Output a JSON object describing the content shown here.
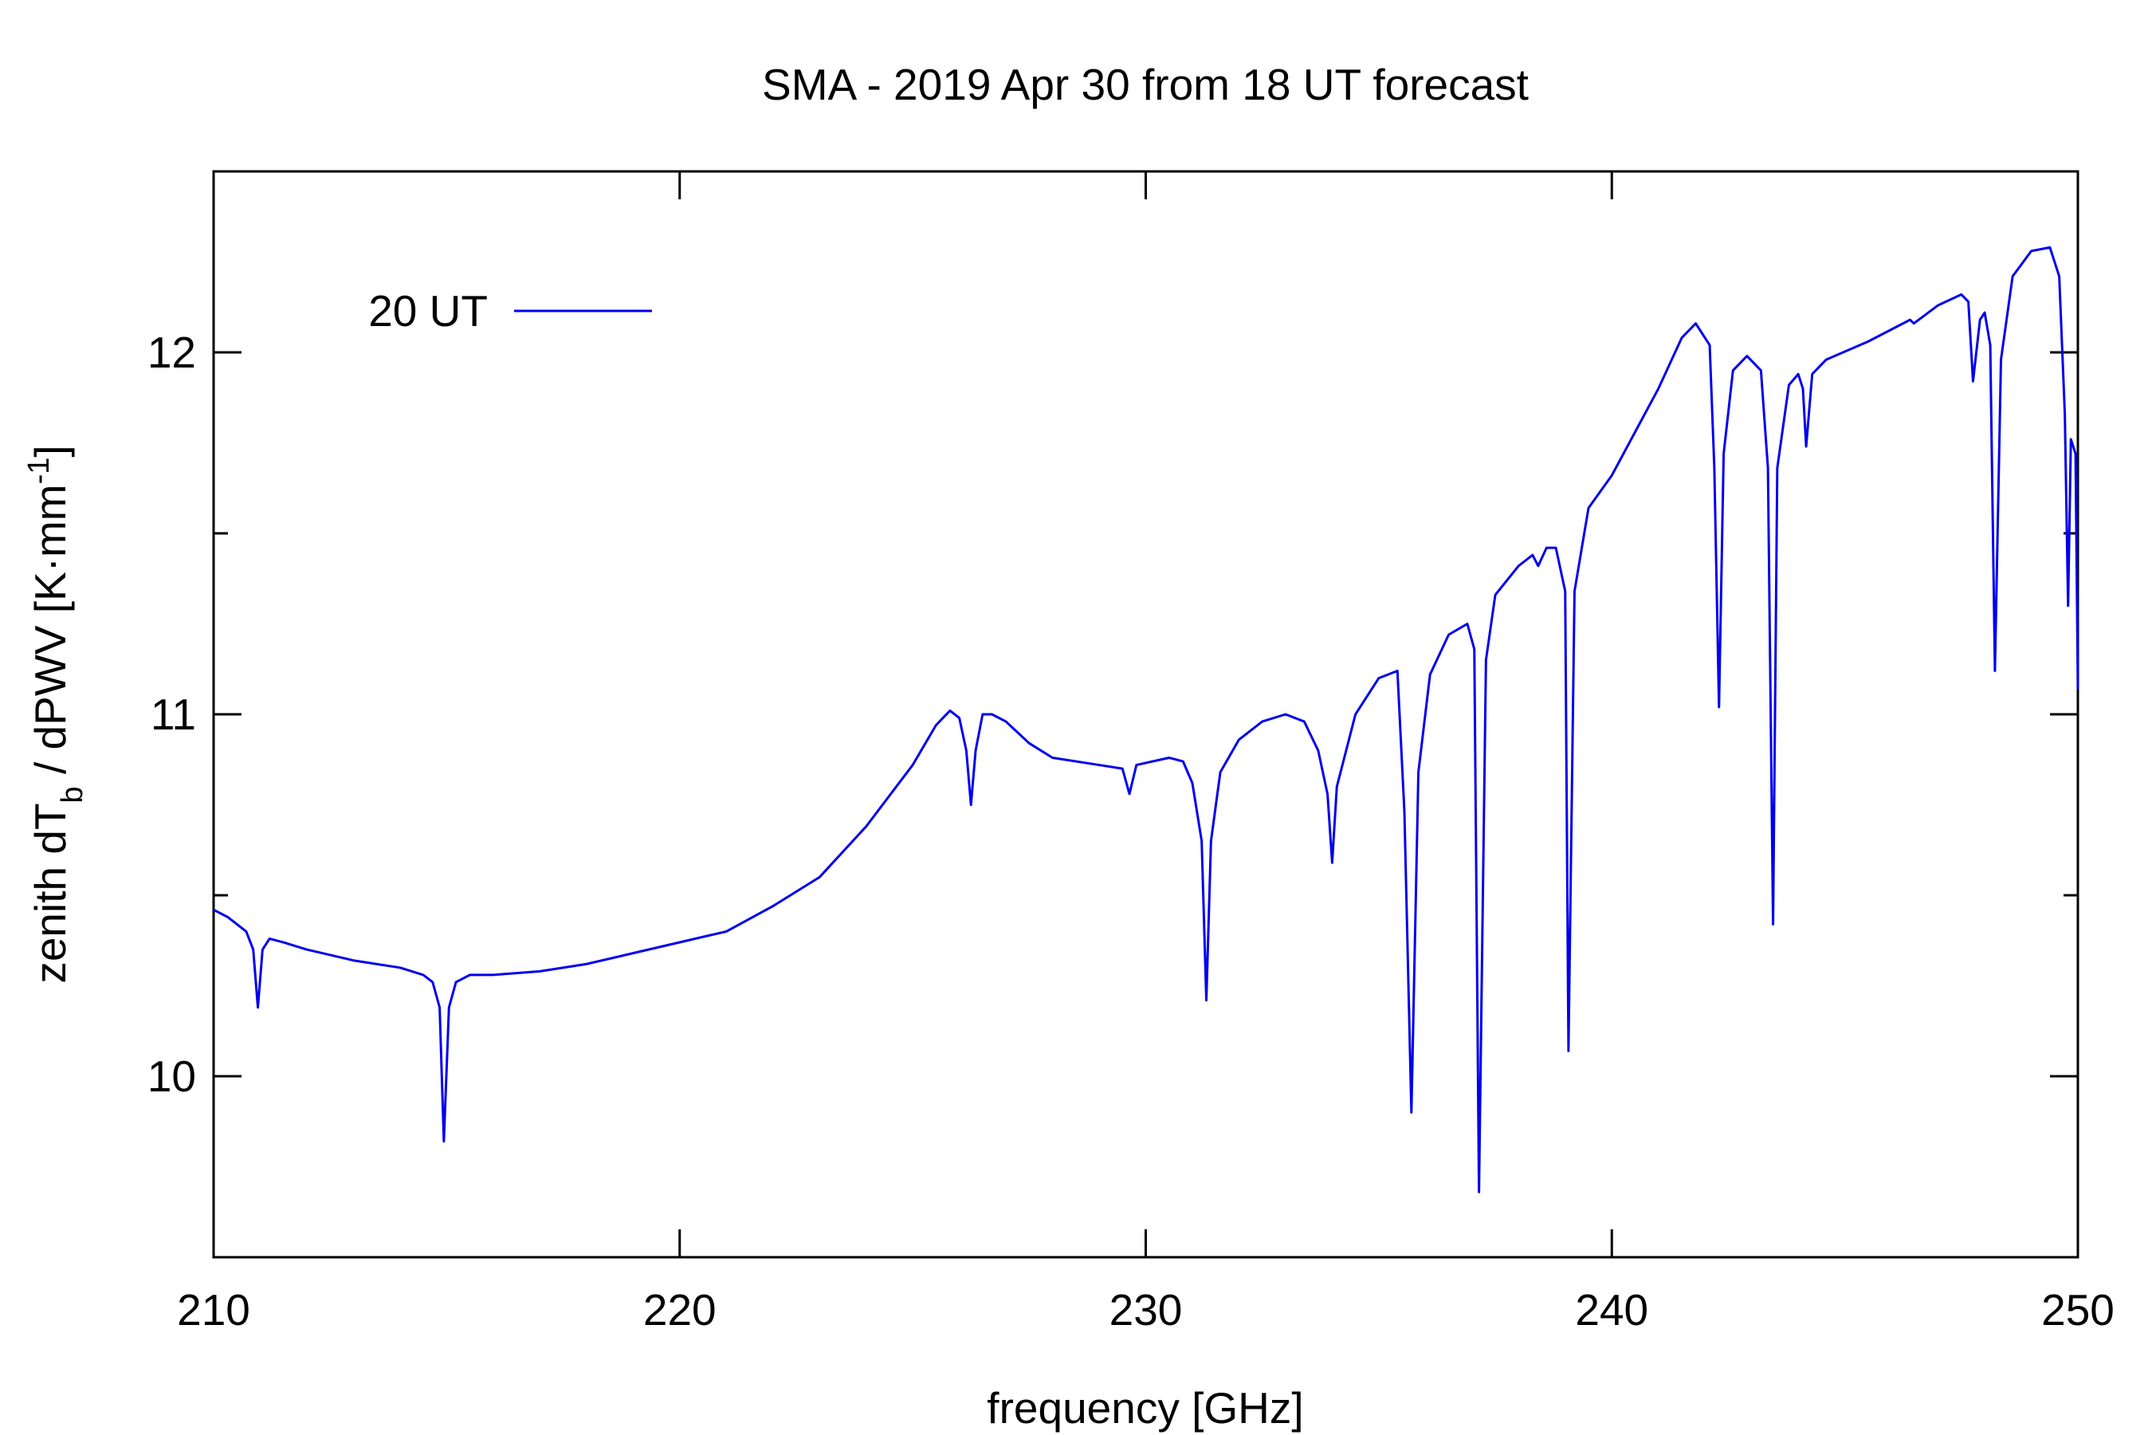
{
  "chart_data": {
    "type": "line",
    "title": "SMA - 2019 Apr 30 from 18 UT forecast",
    "x_label": "frequency [GHz]",
    "y_label": [
      {
        "text": "zenith dT"
      },
      {
        "text": "b",
        "shift": "sub"
      },
      {
        "text": " / dPWV [K·mm"
      },
      {
        "text": "-1",
        "shift": "sup"
      },
      {
        "text": "]"
      }
    ],
    "xlim": [
      210,
      250
    ],
    "xticks": [
      210,
      220,
      230,
      240,
      250
    ],
    "ylim": [
      9.5,
      12.5
    ],
    "yticks": [
      10,
      11,
      12
    ],
    "yminorticks": [
      10.5,
      11.5
    ],
    "grid": false,
    "legend": "upper-left",
    "x": [
      210.0,
      210.3,
      210.5,
      210.7,
      210.85,
      210.95,
      211.05,
      211.2,
      211.5,
      212,
      213,
      214,
      214.5,
      214.7,
      214.85,
      214.94,
      215.05,
      215.2,
      215.5,
      216,
      217,
      218,
      219,
      220,
      221,
      222,
      223,
      224,
      225,
      225.5,
      225.8,
      226.0,
      226.15,
      226.25,
      226.35,
      226.5,
      226.7,
      227,
      227.5,
      228,
      229,
      229.5,
      229.65,
      229.8,
      230.5,
      230.8,
      231.0,
      231.2,
      231.3,
      231.4,
      231.6,
      232,
      232.5,
      233,
      233.4,
      233.7,
      233.9,
      234.0,
      234.1,
      234.5,
      235,
      235.4,
      235.55,
      235.7,
      235.85,
      236.1,
      236.5,
      236.9,
      237.05,
      237.15,
      237.3,
      237.5,
      238,
      238.3,
      238.42,
      238.6,
      238.8,
      239.0,
      239.07,
      239.2,
      239.5,
      240,
      240.5,
      241,
      241.5,
      241.8,
      242.1,
      242.2,
      242.3,
      242.4,
      242.6,
      242.9,
      243.2,
      243.35,
      243.46,
      243.55,
      243.8,
      244.0,
      244.1,
      244.17,
      244.3,
      244.6,
      245.5,
      246.4,
      246.48,
      247,
      247.5,
      247.65,
      247.75,
      247.9,
      248.0,
      248.12,
      248.22,
      248.35,
      248.6,
      249,
      249.4,
      249.6,
      249.72,
      249.79,
      249.85,
      249.95,
      250
    ],
    "series": [
      {
        "name": "20 UT",
        "color": "#0000ee",
        "values": [
          10.46,
          10.44,
          10.42,
          10.4,
          10.35,
          10.19,
          10.35,
          10.38,
          10.37,
          10.35,
          10.32,
          10.3,
          10.28,
          10.26,
          10.19,
          9.82,
          10.19,
          10.26,
          10.28,
          10.28,
          10.29,
          10.31,
          10.34,
          10.37,
          10.4,
          10.47,
          10.55,
          10.69,
          10.86,
          10.97,
          11.01,
          10.99,
          10.9,
          10.75,
          10.9,
          11.0,
          11.0,
          10.98,
          10.92,
          10.88,
          10.86,
          10.85,
          10.78,
          10.86,
          10.88,
          10.87,
          10.81,
          10.65,
          10.21,
          10.65,
          10.84,
          10.93,
          10.98,
          11.0,
          10.98,
          10.9,
          10.78,
          10.59,
          10.8,
          11.0,
          11.1,
          11.12,
          10.73,
          9.9,
          10.84,
          11.11,
          11.22,
          11.25,
          11.18,
          9.68,
          11.15,
          11.33,
          11.41,
          11.44,
          11.41,
          11.46,
          11.46,
          11.34,
          10.07,
          11.34,
          11.57,
          11.66,
          11.78,
          11.9,
          12.04,
          12.08,
          12.02,
          11.68,
          11.02,
          11.72,
          11.95,
          11.99,
          11.95,
          11.68,
          10.42,
          11.68,
          11.91,
          11.94,
          11.9,
          11.74,
          11.94,
          11.98,
          12.03,
          12.09,
          12.08,
          12.13,
          12.16,
          12.14,
          11.92,
          12.09,
          12.11,
          12.02,
          11.12,
          11.98,
          12.21,
          12.28,
          12.29,
          12.21,
          11.83,
          11.3,
          11.76,
          11.72,
          11.07
        ]
      }
    ]
  }
}
